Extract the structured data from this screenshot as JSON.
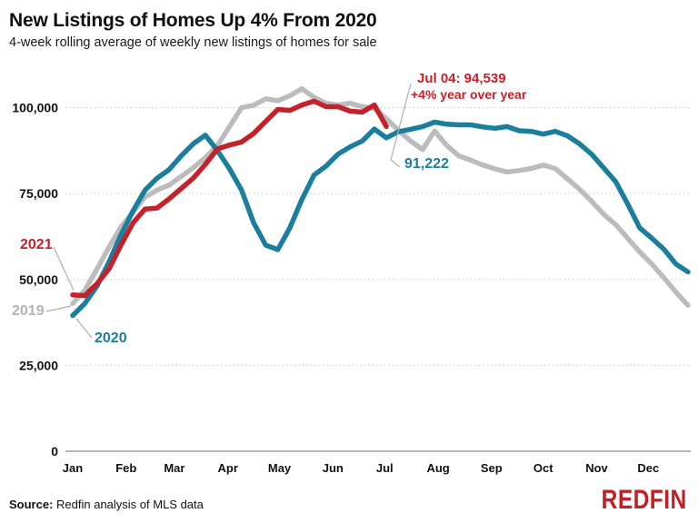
{
  "header": {
    "title": "New Listings of Homes Up 4% From 2020",
    "subtitle": "4-week rolling average of weekly new listings of homes for sale"
  },
  "chart_data": {
    "type": "line",
    "x_unit": "week_of_year",
    "x_axis_months": [
      "Jan",
      "Feb",
      "Mar",
      "Apr",
      "May",
      "Jun",
      "Jul",
      "Aug",
      "Sep",
      "Oct",
      "Nov",
      "Dec"
    ],
    "y_axis": {
      "ticks": [
        0,
        25000,
        50000,
        75000,
        100000
      ],
      "tick_labels": [
        "0",
        "25,000",
        "50,000",
        "75,000",
        "100,000"
      ],
      "range": [
        0,
        110000
      ]
    },
    "grid": "horizontal-dotted",
    "series": [
      {
        "name": "2019",
        "color": "#bcbcbc",
        "values": [
          43000,
          46800,
          52900,
          59300,
          65300,
          69500,
          74000,
          76000,
          77500,
          80000,
          82500,
          85500,
          89000,
          94500,
          100000,
          100700,
          102600,
          102000,
          103500,
          105500,
          103000,
          101300,
          100800,
          101300,
          100300,
          99800,
          96800,
          93400,
          90300,
          87800,
          93200,
          89000,
          86000,
          84700,
          83300,
          82200,
          81300,
          81700,
          82300,
          83300,
          82300,
          79300,
          76300,
          72800,
          69000,
          66000,
          62000,
          58000,
          54500,
          50500,
          46300,
          42500
        ]
      },
      {
        "name": "2020",
        "color": "#1b7e9d",
        "values": [
          39500,
          43000,
          48000,
          55000,
          63000,
          70000,
          76000,
          79500,
          82000,
          86000,
          89500,
          92000,
          87500,
          82200,
          76000,
          66500,
          60000,
          58700,
          65000,
          73300,
          80400,
          83000,
          86500,
          88600,
          90300,
          93800,
          91222,
          93000,
          93700,
          94500,
          95800,
          95200,
          95000,
          95000,
          94400,
          94000,
          94500,
          93300,
          93100,
          92300,
          93100,
          91800,
          89500,
          86500,
          82500,
          78500,
          72000,
          65000,
          62000,
          58800,
          54500,
          52200
        ]
      },
      {
        "name": "2021",
        "color": "#c4222b",
        "values": [
          45500,
          45300,
          48700,
          53000,
          60000,
          66500,
          70500,
          70800,
          73500,
          76500,
          79500,
          83500,
          88000,
          89100,
          90000,
          92500,
          96000,
          99500,
          99200,
          100800,
          101900,
          100300,
          100300,
          99000,
          98700,
          100800,
          94539
        ]
      }
    ],
    "annotations": {
      "latest_point": {
        "text_line1": "Jul 04: 94,539",
        "text_line2": "+4% year over year",
        "color": "#c4222b"
      },
      "comparison_point": {
        "text": "91,222",
        "color": "#1b7e9d"
      },
      "series_labels": [
        {
          "text": "2021",
          "color": "#c4222b"
        },
        {
          "text": "2019",
          "color": "#b3b3b3"
        },
        {
          "text": "2020",
          "color": "#1b7e9d"
        }
      ]
    }
  },
  "footer": {
    "source_label": "Source:",
    "source_text": " Redfin analysis of MLS data",
    "logo_text": "REDFIN",
    "logo_color": "#c12126"
  }
}
